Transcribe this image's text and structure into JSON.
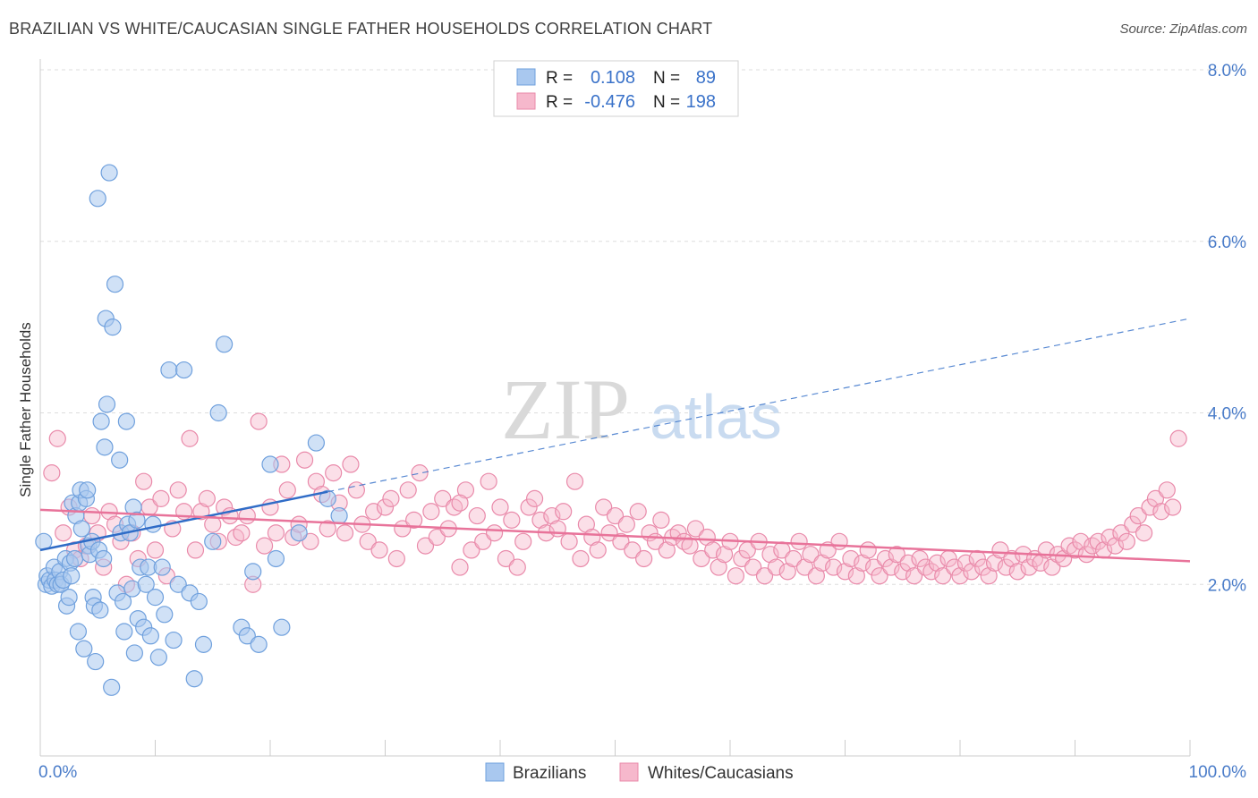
{
  "header": {
    "title": "BRAZILIAN VS WHITE/CAUCASIAN SINGLE FATHER HOUSEHOLDS CORRELATION CHART",
    "source": "Source: ZipAtlas.com"
  },
  "watermark": {
    "zip": "ZIP",
    "atlas": "atlas"
  },
  "legend_box": {
    "rows": [
      {
        "r_label": "R =",
        "r_value": "0.108",
        "n_label": "N =",
        "n_value": "89"
      },
      {
        "r_label": "R =",
        "r_value": "-0.476",
        "n_label": "N =",
        "n_value": "198"
      }
    ]
  },
  "colors": {
    "blue_fill": "#a9c8ef",
    "blue_stroke": "#6fa0dd",
    "blue_line": "#2f6cc7",
    "pink_fill": "#f6b8cc",
    "pink_stroke": "#e98aaa",
    "pink_line": "#e8739a",
    "axis_text": "#4a7cc9",
    "grid": "#dddddd"
  },
  "chart_data": {
    "type": "scatter",
    "title": "BRAZILIAN VS WHITE/CAUCASIAN SINGLE FATHER HOUSEHOLDS CORRELATION CHART",
    "xlabel": "",
    "ylabel": "Single Father Households",
    "xlim": [
      0,
      100
    ],
    "ylim": [
      0,
      8.0
    ],
    "x_tick_labels": [
      "0.0%",
      "100.0%"
    ],
    "y_ticks": [
      2.0,
      4.0,
      6.0,
      8.0
    ],
    "y_tick_labels": [
      "2.0%",
      "4.0%",
      "6.0%",
      "8.0%"
    ],
    "grid": true,
    "legend_position": "bottom-center",
    "series": [
      {
        "name": "Brazilians",
        "r": 0.108,
        "n": 89,
        "trend": {
          "solid_x": [
            0,
            25
          ],
          "solid_y": [
            2.4,
            3.08
          ],
          "dashed_x": [
            25,
            100
          ],
          "dashed_y": [
            3.08,
            5.1
          ]
        },
        "points": [
          [
            0.3,
            2.5
          ],
          [
            0.5,
            2.0
          ],
          [
            0.6,
            2.1
          ],
          [
            0.8,
            2.05
          ],
          [
            1.0,
            1.98
          ],
          [
            1.2,
            2.2
          ],
          [
            1.3,
            2.05
          ],
          [
            1.5,
            2.0
          ],
          [
            1.7,
            2.15
          ],
          [
            1.8,
            2.0
          ],
          [
            2.0,
            2.05
          ],
          [
            2.2,
            2.3
          ],
          [
            2.3,
            1.75
          ],
          [
            2.5,
            1.85
          ],
          [
            2.6,
            2.25
          ],
          [
            2.7,
            2.1
          ],
          [
            2.8,
            2.95
          ],
          [
            3.0,
            2.3
          ],
          [
            3.1,
            2.8
          ],
          [
            3.3,
            1.45
          ],
          [
            3.4,
            2.95
          ],
          [
            3.5,
            3.1
          ],
          [
            3.6,
            2.65
          ],
          [
            3.8,
            1.25
          ],
          [
            4.0,
            3.0
          ],
          [
            4.1,
            3.1
          ],
          [
            4.2,
            2.45
          ],
          [
            4.3,
            2.35
          ],
          [
            4.5,
            2.5
          ],
          [
            4.6,
            1.85
          ],
          [
            4.7,
            1.75
          ],
          [
            4.8,
            1.1
          ],
          [
            5.0,
            6.5
          ],
          [
            5.1,
            2.4
          ],
          [
            5.2,
            1.7
          ],
          [
            5.3,
            3.9
          ],
          [
            5.5,
            2.3
          ],
          [
            5.6,
            3.6
          ],
          [
            5.7,
            5.1
          ],
          [
            5.8,
            4.1
          ],
          [
            6.0,
            6.8
          ],
          [
            6.2,
            0.8
          ],
          [
            6.3,
            5.0
          ],
          [
            6.5,
            5.5
          ],
          [
            6.7,
            1.9
          ],
          [
            6.9,
            3.45
          ],
          [
            7.0,
            2.6
          ],
          [
            7.2,
            1.8
          ],
          [
            7.3,
            1.45
          ],
          [
            7.5,
            3.9
          ],
          [
            7.6,
            2.7
          ],
          [
            7.8,
            2.6
          ],
          [
            8.0,
            1.95
          ],
          [
            8.1,
            2.9
          ],
          [
            8.2,
            1.2
          ],
          [
            8.4,
            2.75
          ],
          [
            8.5,
            1.6
          ],
          [
            8.7,
            2.2
          ],
          [
            9.0,
            1.5
          ],
          [
            9.2,
            2.0
          ],
          [
            9.4,
            2.2
          ],
          [
            9.6,
            1.4
          ],
          [
            9.8,
            2.7
          ],
          [
            10.0,
            1.85
          ],
          [
            10.3,
            1.15
          ],
          [
            10.6,
            2.2
          ],
          [
            10.8,
            1.65
          ],
          [
            11.2,
            4.5
          ],
          [
            11.6,
            1.35
          ],
          [
            12.0,
            2.0
          ],
          [
            12.5,
            4.5
          ],
          [
            13.0,
            1.9
          ],
          [
            13.4,
            0.9
          ],
          [
            13.8,
            1.8
          ],
          [
            14.2,
            1.3
          ],
          [
            15.0,
            2.5
          ],
          [
            15.5,
            4.0
          ],
          [
            16.0,
            4.8
          ],
          [
            17.5,
            1.5
          ],
          [
            18.0,
            1.4
          ],
          [
            18.5,
            2.15
          ],
          [
            19.0,
            1.3
          ],
          [
            20.0,
            3.4
          ],
          [
            20.5,
            2.3
          ],
          [
            21.0,
            1.5
          ],
          [
            22.5,
            2.6
          ],
          [
            24.0,
            3.65
          ],
          [
            25.0,
            3.0
          ],
          [
            26.0,
            2.8
          ]
        ]
      },
      {
        "name": "Whites/Caucasians",
        "r": -0.476,
        "n": 198,
        "trend": {
          "x": [
            0,
            100
          ],
          "y": [
            2.87,
            2.27
          ]
        },
        "points": [
          [
            1,
            3.3
          ],
          [
            1.5,
            3.7
          ],
          [
            2,
            2.6
          ],
          [
            2.5,
            2.9
          ],
          [
            3,
            2.4
          ],
          [
            3.5,
            2.3
          ],
          [
            4,
            2.45
          ],
          [
            4.5,
            2.8
          ],
          [
            5,
            2.6
          ],
          [
            5.5,
            2.2
          ],
          [
            6,
            2.85
          ],
          [
            6.5,
            2.7
          ],
          [
            7,
            2.5
          ],
          [
            7.5,
            2.0
          ],
          [
            8,
            2.6
          ],
          [
            8.5,
            2.3
          ],
          [
            9,
            3.2
          ],
          [
            9.5,
            2.9
          ],
          [
            10,
            2.4
          ],
          [
            10.5,
            3.0
          ],
          [
            11,
            2.1
          ],
          [
            11.5,
            2.65
          ],
          [
            12,
            3.1
          ],
          [
            12.5,
            2.85
          ],
          [
            13,
            3.7
          ],
          [
            13.5,
            2.4
          ],
          [
            14,
            2.85
          ],
          [
            14.5,
            3.0
          ],
          [
            15,
            2.7
          ],
          [
            15.5,
            2.5
          ],
          [
            16,
            2.9
          ],
          [
            16.5,
            2.8
          ],
          [
            17,
            2.55
          ],
          [
            17.5,
            2.6
          ],
          [
            18,
            2.8
          ],
          [
            18.5,
            2.0
          ],
          [
            19,
            3.9
          ],
          [
            19.5,
            2.45
          ],
          [
            20,
            2.9
          ],
          [
            20.5,
            2.6
          ],
          [
            21,
            3.4
          ],
          [
            21.5,
            3.1
          ],
          [
            22,
            2.55
          ],
          [
            22.5,
            2.7
          ],
          [
            23,
            3.45
          ],
          [
            23.5,
            2.5
          ],
          [
            24,
            3.2
          ],
          [
            24.5,
            3.05
          ],
          [
            25,
            2.65
          ],
          [
            25.5,
            3.3
          ],
          [
            26,
            2.95
          ],
          [
            26.5,
            2.6
          ],
          [
            27,
            3.4
          ],
          [
            27.5,
            3.1
          ],
          [
            28,
            2.7
          ],
          [
            28.5,
            2.5
          ],
          [
            29,
            2.85
          ],
          [
            29.5,
            2.4
          ],
          [
            30,
            2.9
          ],
          [
            30.5,
            3.0
          ],
          [
            31,
            2.3
          ],
          [
            31.5,
            2.65
          ],
          [
            32,
            3.1
          ],
          [
            32.5,
            2.75
          ],
          [
            33,
            3.3
          ],
          [
            33.5,
            2.45
          ],
          [
            34,
            2.85
          ],
          [
            34.5,
            2.55
          ],
          [
            35,
            3.0
          ],
          [
            35.5,
            2.65
          ],
          [
            36,
            2.9
          ],
          [
            36.5,
            2.2
          ],
          [
            37,
            3.1
          ],
          [
            37.5,
            2.4
          ],
          [
            38,
            2.8
          ],
          [
            38.5,
            2.5
          ],
          [
            39,
            3.2
          ],
          [
            39.5,
            2.6
          ],
          [
            40,
            2.9
          ],
          [
            40.5,
            2.3
          ],
          [
            41,
            2.75
          ],
          [
            41.5,
            2.2
          ],
          [
            42,
            2.5
          ],
          [
            42.5,
            2.9
          ],
          [
            43,
            3.0
          ],
          [
            43.5,
            2.75
          ],
          [
            44,
            2.6
          ],
          [
            44.5,
            2.8
          ],
          [
            45,
            2.65
          ],
          [
            45.5,
            2.85
          ],
          [
            46,
            2.5
          ],
          [
            46.5,
            3.2
          ],
          [
            47,
            2.3
          ],
          [
            47.5,
            2.7
          ],
          [
            48,
            2.55
          ],
          [
            48.5,
            2.4
          ],
          [
            49,
            2.9
          ],
          [
            49.5,
            2.6
          ],
          [
            50,
            2.8
          ],
          [
            50.5,
            2.5
          ],
          [
            51,
            2.7
          ],
          [
            51.5,
            2.4
          ],
          [
            52,
            2.85
          ],
          [
            52.5,
            2.3
          ],
          [
            53,
            2.6
          ],
          [
            53.5,
            2.5
          ],
          [
            54,
            2.75
          ],
          [
            54.5,
            2.4
          ],
          [
            55,
            2.55
          ],
          [
            55.5,
            2.6
          ],
          [
            56,
            2.5
          ],
          [
            56.5,
            2.45
          ],
          [
            57,
            2.65
          ],
          [
            57.5,
            2.3
          ],
          [
            58,
            2.55
          ],
          [
            58.5,
            2.4
          ],
          [
            59,
            2.2
          ],
          [
            59.5,
            2.35
          ],
          [
            60,
            2.5
          ],
          [
            60.5,
            2.1
          ],
          [
            61,
            2.3
          ],
          [
            61.5,
            2.4
          ],
          [
            62,
            2.2
          ],
          [
            62.5,
            2.5
          ],
          [
            63,
            2.1
          ],
          [
            63.5,
            2.35
          ],
          [
            64,
            2.2
          ],
          [
            64.5,
            2.4
          ],
          [
            65,
            2.15
          ],
          [
            65.5,
            2.3
          ],
          [
            66,
            2.5
          ],
          [
            66.5,
            2.2
          ],
          [
            67,
            2.35
          ],
          [
            67.5,
            2.1
          ],
          [
            68,
            2.25
          ],
          [
            68.5,
            2.4
          ],
          [
            69,
            2.2
          ],
          [
            69.5,
            2.5
          ],
          [
            70,
            2.15
          ],
          [
            70.5,
            2.3
          ],
          [
            71,
            2.1
          ],
          [
            71.5,
            2.25
          ],
          [
            72,
            2.4
          ],
          [
            72.5,
            2.2
          ],
          [
            73,
            2.1
          ],
          [
            73.5,
            2.3
          ],
          [
            74,
            2.2
          ],
          [
            74.5,
            2.35
          ],
          [
            75,
            2.15
          ],
          [
            75.5,
            2.25
          ],
          [
            76,
            2.1
          ],
          [
            76.5,
            2.3
          ],
          [
            77,
            2.2
          ],
          [
            77.5,
            2.15
          ],
          [
            78,
            2.25
          ],
          [
            78.5,
            2.1
          ],
          [
            79,
            2.3
          ],
          [
            79.5,
            2.2
          ],
          [
            80,
            2.1
          ],
          [
            80.5,
            2.25
          ],
          [
            81,
            2.15
          ],
          [
            81.5,
            2.3
          ],
          [
            82,
            2.2
          ],
          [
            82.5,
            2.1
          ],
          [
            83,
            2.25
          ],
          [
            83.5,
            2.4
          ],
          [
            84,
            2.2
          ],
          [
            84.5,
            2.3
          ],
          [
            85,
            2.15
          ],
          [
            85.5,
            2.35
          ],
          [
            86,
            2.2
          ],
          [
            86.5,
            2.3
          ],
          [
            87,
            2.25
          ],
          [
            87.5,
            2.4
          ],
          [
            88,
            2.2
          ],
          [
            88.5,
            2.35
          ],
          [
            89,
            2.3
          ],
          [
            89.5,
            2.45
          ],
          [
            90,
            2.4
          ],
          [
            90.5,
            2.5
          ],
          [
            91,
            2.35
          ],
          [
            91.5,
            2.45
          ],
          [
            92,
            2.5
          ],
          [
            92.5,
            2.4
          ],
          [
            93,
            2.55
          ],
          [
            93.5,
            2.45
          ],
          [
            94,
            2.6
          ],
          [
            94.5,
            2.5
          ],
          [
            95,
            2.7
          ],
          [
            95.5,
            2.8
          ],
          [
            96,
            2.6
          ],
          [
            96.5,
            2.9
          ],
          [
            97,
            3.0
          ],
          [
            97.5,
            2.85
          ],
          [
            98,
            3.1
          ],
          [
            98.5,
            2.9
          ],
          [
            99,
            3.7
          ],
          [
            36.5,
            2.95
          ]
        ]
      }
    ]
  }
}
